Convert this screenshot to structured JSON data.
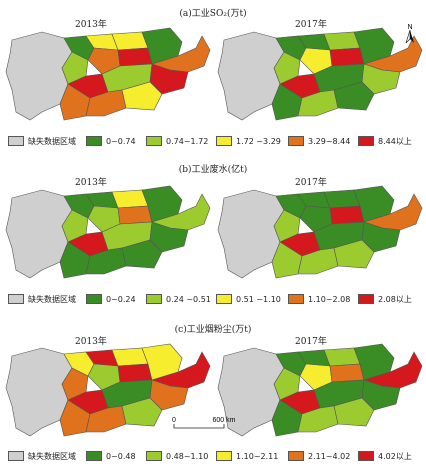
{
  "panels": [
    {
      "title": "(a)工业SO₂(万t)",
      "years": [
        "2013年",
        "2017年"
      ],
      "legend": [
        {
          "label": "缺失数据区域",
          "color": "#cfcfcf"
        },
        {
          "label": "0~0.74",
          "color": "#3a8c25"
        },
        {
          "label": "0.74~1.72",
          "color": "#9ccb2f"
        },
        {
          "label": "1.72 ~3.29",
          "color": "#f7ed2f"
        },
        {
          "label": "3.29~8.44",
          "color": "#e0711d"
        },
        {
          "label": "8.44以上",
          "color": "#d4181d"
        }
      ]
    },
    {
      "title": "(b)工业废水(亿t)",
      "years": [
        "2013年",
        "2017年"
      ],
      "legend": [
        {
          "label": "缺失数据区域",
          "color": "#cfcfcf"
        },
        {
          "label": "0~0.24",
          "color": "#3a8c25"
        },
        {
          "label": "0.24 ~0.51",
          "color": "#9ccb2f"
        },
        {
          "label": "0.51 ~1.10",
          "color": "#f7ed2f"
        },
        {
          "label": "1.10~2.08",
          "color": "#e0711d"
        },
        {
          "label": "2.08以上",
          "color": "#d4181d"
        }
      ]
    },
    {
      "title": "(c)工业烟粉尘(万t)",
      "years": [
        "2013年",
        "2017年"
      ],
      "legend": [
        {
          "label": "缺失数据区域",
          "color": "#cfcfcf"
        },
        {
          "label": "0~0.48",
          "color": "#3a8c25"
        },
        {
          "label": "0.48~1.10",
          "color": "#9ccb2f"
        },
        {
          "label": "1.10~2.11",
          "color": "#f7ed2f"
        },
        {
          "label": "2.11~4.02",
          "color": "#e0711d"
        },
        {
          "label": "4.02以上",
          "color": "#d4181d"
        }
      ]
    }
  ],
  "north_label": "N",
  "scale": {
    "zero": "0",
    "distance": "600 km"
  },
  "map_themes": [
    [
      "#cfcfcf",
      "#3a8c25",
      "#9ccb2f",
      "#f7ed2f",
      "#e0711d",
      "#d4181d",
      "#e0711d",
      "#f7ed2f",
      "#d4181d",
      "#9ccb2f",
      "#e0711d",
      "#3a8c25",
      "#e0711d",
      "#d4181d",
      "#f7ed2f"
    ],
    [
      "#cfcfcf",
      "#3a8c25",
      "#9ccb2f",
      "#3a8c25",
      "#f7ed2f",
      "#d4181d",
      "#3a8c25",
      "#9ccb2f",
      "#d4181d",
      "#3a8c25",
      "#9ccb2f",
      "#3a8c25",
      "#e0711d",
      "#9ccb2f",
      "#3a8c25"
    ],
    [
      "#cfcfcf",
      "#3a8c25",
      "#9ccb2f",
      "#3a8c25",
      "#9ccb2f",
      "#d4181d",
      "#3a8c25",
      "#f7ed2f",
      "#e0711d",
      "#9ccb2f",
      "#3a8c25",
      "#3a8c25",
      "#9ccb2f",
      "#3a8c25",
      "#3a8c25"
    ],
    [
      "#cfcfcf",
      "#3a8c25",
      "#9ccb2f",
      "#3a8c25",
      "#3a8c25",
      "#d4181d",
      "#9ccb2f",
      "#3a8c25",
      "#d4181d",
      "#3a8c25",
      "#9ccb2f",
      "#3a8c25",
      "#e0711d",
      "#3a8c25",
      "#9ccb2f"
    ],
    [
      "#cfcfcf",
      "#f7ed2f",
      "#e0711d",
      "#d4181d",
      "#9ccb2f",
      "#d4181d",
      "#e0711d",
      "#f7ed2f",
      "#d4181d",
      "#3a8c25",
      "#e0711d",
      "#f7ed2f",
      "#d4181d",
      "#e0711d",
      "#9ccb2f"
    ],
    [
      "#cfcfcf",
      "#3a8c25",
      "#9ccb2f",
      "#3a8c25",
      "#f7ed2f",
      "#d4181d",
      "#3a8c25",
      "#9ccb2f",
      "#e0711d",
      "#3a8c25",
      "#9ccb2f",
      "#3a8c25",
      "#d4181d",
      "#3a8c25",
      "#9ccb2f"
    ]
  ]
}
